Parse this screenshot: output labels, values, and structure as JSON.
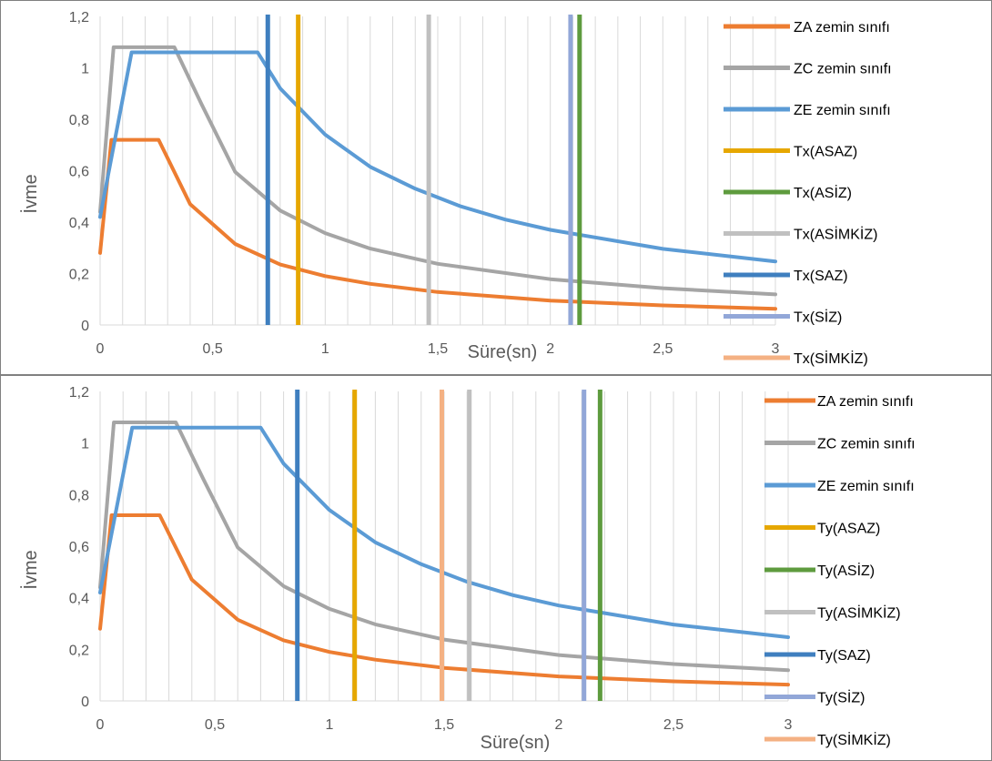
{
  "chart_data": [
    {
      "type": "line",
      "xlabel": "Süre(sn)",
      "ylabel": "İvme",
      "xlim": [
        0,
        3
      ],
      "ylim": [
        0,
        1.2
      ],
      "x_ticks": [
        "0",
        "0,5",
        "1",
        "1,5",
        "2",
        "2,5",
        "3"
      ],
      "y_ticks": [
        "0",
        "0,2",
        "0,4",
        "0,6",
        "0,8",
        "1",
        "1,2"
      ],
      "grid": "vertical",
      "legend_position": "right",
      "series": [
        {
          "name": "ZA zemin sınıfı",
          "color": "#ED7D31",
          "x": [
            0,
            0.05,
            0.26,
            0.4,
            0.6,
            0.8,
            1.0,
            1.2,
            1.5,
            2.0,
            2.5,
            3.0
          ],
          "values": [
            0.28,
            0.72,
            0.72,
            0.47,
            0.315,
            0.235,
            0.19,
            0.16,
            0.128,
            0.095,
            0.076,
            0.063
          ]
        },
        {
          "name": "ZC zemin sınıfı",
          "color": "#A5A5A5",
          "x": [
            0,
            0.06,
            0.33,
            0.45,
            0.6,
            0.8,
            1.0,
            1.2,
            1.5,
            2.0,
            2.5,
            3.0
          ],
          "values": [
            0.44,
            1.08,
            1.08,
            0.86,
            0.595,
            0.445,
            0.357,
            0.297,
            0.238,
            0.178,
            0.143,
            0.119
          ]
        },
        {
          "name": "ZE zemin sınıfı",
          "color": "#5B9BD5",
          "x": [
            0,
            0.14,
            0.7,
            0.8,
            1.0,
            1.2,
            1.4,
            1.6,
            1.8,
            2.0,
            2.5,
            3.0
          ],
          "values": [
            0.42,
            1.06,
            1.06,
            0.92,
            0.74,
            0.615,
            0.53,
            0.462,
            0.41,
            0.37,
            0.296,
            0.247
          ]
        }
      ],
      "vertical_lines": [
        {
          "name": "Tx(ASAZ)",
          "color": "#E6A700",
          "x": 0.88
        },
        {
          "name": "Tx(ASİZ)",
          "color": "#5E9B3E",
          "x": 2.13
        },
        {
          "name": "Tx(ASİMKİZ)",
          "color": "#C0C0C0",
          "x": 1.46
        },
        {
          "name": "Tx(SAZ)",
          "color": "#3F7FBF",
          "x": 0.745
        },
        {
          "name": "Tx(SİZ)",
          "color": "#92A7D8",
          "x": 2.09
        },
        {
          "name": "Tx(SİMKİZ)",
          "color": "#F4B183",
          "x": null
        }
      ]
    },
    {
      "type": "line",
      "xlabel": "Süre(sn)",
      "ylabel": "İvme",
      "xlim": [
        0,
        3
      ],
      "ylim": [
        0,
        1.2
      ],
      "x_ticks": [
        "0",
        "0,5",
        "1",
        "1,5",
        "2",
        "2,5",
        "3"
      ],
      "y_ticks": [
        "0",
        "0,2",
        "0,4",
        "0,6",
        "0,8",
        "1",
        "1,2"
      ],
      "grid": "vertical",
      "legend_position": "right",
      "series": [
        {
          "name": "ZA zemin sınıfı",
          "color": "#ED7D31",
          "x": [
            0,
            0.05,
            0.26,
            0.4,
            0.6,
            0.8,
            1.0,
            1.2,
            1.5,
            2.0,
            2.5,
            3.0
          ],
          "values": [
            0.28,
            0.72,
            0.72,
            0.47,
            0.315,
            0.235,
            0.19,
            0.16,
            0.128,
            0.095,
            0.076,
            0.063
          ]
        },
        {
          "name": "ZC zemin sınıfı",
          "color": "#A5A5A5",
          "x": [
            0,
            0.06,
            0.33,
            0.45,
            0.6,
            0.8,
            1.0,
            1.2,
            1.5,
            2.0,
            2.5,
            3.0
          ],
          "values": [
            0.44,
            1.08,
            1.08,
            0.86,
            0.595,
            0.445,
            0.357,
            0.297,
            0.238,
            0.178,
            0.143,
            0.119
          ]
        },
        {
          "name": "ZE zemin sınıfı",
          "color": "#5B9BD5",
          "x": [
            0,
            0.14,
            0.7,
            0.8,
            1.0,
            1.2,
            1.4,
            1.6,
            1.8,
            2.0,
            2.5,
            3.0
          ],
          "values": [
            0.42,
            1.06,
            1.06,
            0.92,
            0.74,
            0.615,
            0.53,
            0.462,
            0.41,
            0.37,
            0.296,
            0.247
          ]
        }
      ],
      "vertical_lines": [
        {
          "name": "Ty(ASAZ)",
          "color": "#E6A700",
          "x": 1.11
        },
        {
          "name": "Ty(ASİZ)",
          "color": "#5E9B3E",
          "x": 2.18
        },
        {
          "name": "Ty(ASİMKİZ)",
          "color": "#C0C0C0",
          "x": 1.61
        },
        {
          "name": "Ty(SAZ)",
          "color": "#3F7FBF",
          "x": 0.86
        },
        {
          "name": "Ty(SİZ)",
          "color": "#92A7D8",
          "x": 2.11
        },
        {
          "name": "Ty(SİMKİZ)",
          "color": "#F4B183",
          "x": 1.49
        }
      ]
    }
  ]
}
